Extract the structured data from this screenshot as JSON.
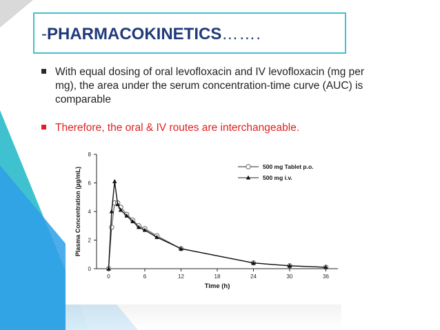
{
  "slide": {
    "title_prefix": "-",
    "title_main": "PHARMACOKINETICS",
    "title_suffix": "…….",
    "bullets": [
      "With equal dosing of oral levofloxacin and IV levofloxacin (mg per mg), the area under the serum concentration-time curve (AUC) is comparable",
      "Therefore, the oral & IV routes are interchangeable."
    ],
    "colors": {
      "accent": "#3fc1cf",
      "title": "#1f3a7a",
      "highlight": "#e02020"
    },
    "icons": [
      "square-bullet-icon",
      "square-bullet-icon"
    ]
  },
  "chart_data": {
    "type": "line",
    "xlabel": "Time (h)",
    "ylabel": "Plasma Concentration (µg/mL)",
    "xlim": [
      -2,
      38
    ],
    "ylim": [
      0,
      8
    ],
    "xticks": [
      0,
      6,
      12,
      18,
      24,
      30,
      36
    ],
    "yticks": [
      0,
      2,
      4,
      6,
      8
    ],
    "legend_position": "top-right",
    "series": [
      {
        "name": "500 mg Tablet p.o.",
        "marker": "open-circle",
        "x": [
          0,
          0.5,
          1,
          1.5,
          2,
          3,
          4,
          5,
          6,
          8,
          12,
          24,
          30,
          36
        ],
        "y": [
          0,
          2.9,
          4.6,
          4.6,
          4.3,
          3.8,
          3.4,
          3.0,
          2.8,
          2.3,
          1.4,
          0.4,
          0.2,
          0.1
        ]
      },
      {
        "name": "500 mg i.v.",
        "marker": "filled-triangle",
        "x": [
          0,
          0.5,
          1,
          1.5,
          2,
          3,
          4,
          5,
          6,
          8,
          12,
          24,
          30,
          36
        ],
        "y": [
          0,
          4.0,
          6.1,
          4.5,
          4.1,
          3.7,
          3.3,
          2.9,
          2.7,
          2.2,
          1.4,
          0.4,
          0.2,
          0.1
        ]
      }
    ]
  }
}
